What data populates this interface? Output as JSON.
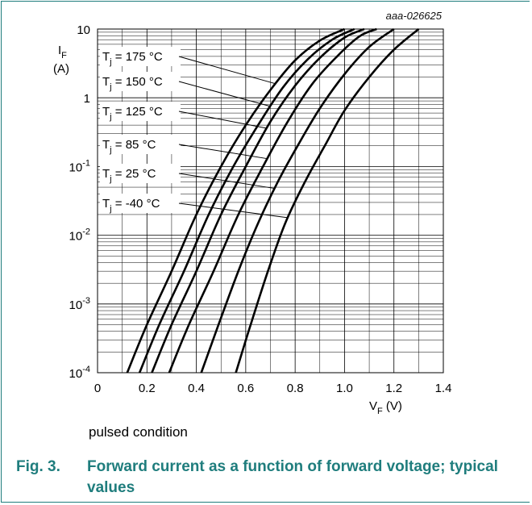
{
  "figure": {
    "reference_id": "aaa-026625",
    "note": "pulsed condition",
    "caption_number": "Fig. 3.",
    "caption_text": "Forward current as a function of forward voltage; typical values"
  },
  "chart_data": {
    "type": "line",
    "xlabel": "V",
    "xlabel_sub": "F",
    "xlabel_unit": "(V)",
    "ylabel": "I",
    "ylabel_sub": "F",
    "ylabel_unit": "(A)",
    "x_scale": "linear",
    "y_scale": "log",
    "xlim": [
      0,
      1.4
    ],
    "ylim": [
      0.0001,
      10
    ],
    "x_ticks": [
      0,
      0.2,
      0.4,
      0.6,
      0.8,
      1.0,
      1.2,
      1.4
    ],
    "x_tick_labels": [
      "0",
      "0.2",
      "0.4",
      "0.6",
      "0.8",
      "1.0",
      "1.2",
      "1.4"
    ],
    "y_ticks": [
      0.0001,
      0.001,
      0.01,
      0.1,
      1,
      10
    ],
    "y_tick_labels": [
      {
        "base": "10",
        "exp": "-4"
      },
      {
        "base": "10",
        "exp": "-3"
      },
      {
        "base": "10",
        "exp": "-2"
      },
      {
        "base": "10",
        "exp": "-1"
      },
      {
        "base": "1",
        "exp": ""
      },
      {
        "base": "10",
        "exp": ""
      }
    ],
    "grid": true,
    "line_color": "#000000",
    "series": [
      {
        "label_main": "T",
        "label_sub": "j",
        "label_rest": " = 175 °C",
        "x": [
          0.12,
          0.2,
          0.3,
          0.4,
          0.5,
          0.6,
          0.7,
          0.8,
          0.9,
          1.0
        ],
        "y": [
          0.0001,
          0.0005,
          0.003,
          0.02,
          0.1,
          0.4,
          1.3,
          3.5,
          6.8,
          10
        ]
      },
      {
        "label_main": "T",
        "label_sub": "j",
        "label_rest": " = 150 °C",
        "x": [
          0.17,
          0.25,
          0.35,
          0.45,
          0.55,
          0.65,
          0.75,
          0.85,
          0.95,
          1.04
        ],
        "y": [
          0.0001,
          0.0005,
          0.003,
          0.02,
          0.1,
          0.4,
          1.4,
          3.6,
          7.0,
          10
        ]
      },
      {
        "label_main": "T",
        "label_sub": "j",
        "label_rest": " = 125 °C",
        "x": [
          0.22,
          0.3,
          0.4,
          0.5,
          0.6,
          0.7,
          0.8,
          0.9,
          1.0,
          1.08
        ],
        "y": [
          0.0001,
          0.0005,
          0.003,
          0.02,
          0.1,
          0.45,
          1.5,
          3.8,
          7.5,
          10
        ]
      },
      {
        "label_main": "T",
        "label_sub": "j",
        "label_rest": " = 85 °C",
        "x": [
          0.29,
          0.37,
          0.47,
          0.57,
          0.67,
          0.77,
          0.87,
          0.97,
          1.06,
          1.13
        ],
        "y": [
          0.0001,
          0.0005,
          0.003,
          0.02,
          0.1,
          0.45,
          1.6,
          4.0,
          7.8,
          10
        ]
      },
      {
        "label_main": "T",
        "label_sub": "j",
        "label_rest": " = 25 °C",
        "x": [
          0.42,
          0.49,
          0.57,
          0.65,
          0.73,
          0.81,
          0.9,
          1.0,
          1.1,
          1.2
        ],
        "y": [
          0.0001,
          0.0005,
          0.003,
          0.015,
          0.06,
          0.2,
          0.7,
          2.2,
          5.5,
          10
        ]
      },
      {
        "label_main": "T",
        "label_sub": "j",
        "label_rest": " = -40 °C",
        "x": [
          0.56,
          0.62,
          0.69,
          0.76,
          0.84,
          0.92,
          1.0,
          1.1,
          1.2,
          1.3
        ],
        "y": [
          0.0001,
          0.0005,
          0.003,
          0.015,
          0.06,
          0.2,
          0.65,
          2.0,
          5.0,
          10
        ]
      }
    ]
  }
}
